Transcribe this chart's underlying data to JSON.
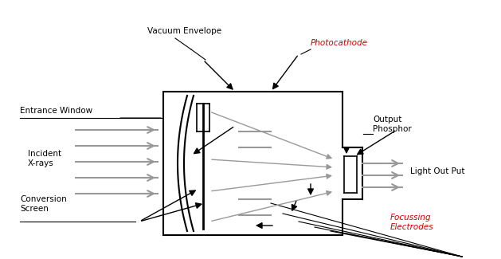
{
  "bg_color": "#ffffff",
  "line_color": "#000000",
  "gray_color": "#999999",
  "red_color": "#cc0000",
  "labels": {
    "vacuum_envelope": "Vacuum Envelope",
    "photocathode": "Photocathode",
    "entrance_window": "Entrance Window",
    "output_phosphor": "Output\nPhosphor",
    "incident_xrays": "Incident\nX-rays",
    "light_output": "Light Out Put",
    "conversion_screen": "Conversion\nScreen",
    "focussing_electrodes": "Focussing\nElectrodes"
  },
  "figsize": [
    6.29,
    3.25
  ],
  "dpi": 100
}
